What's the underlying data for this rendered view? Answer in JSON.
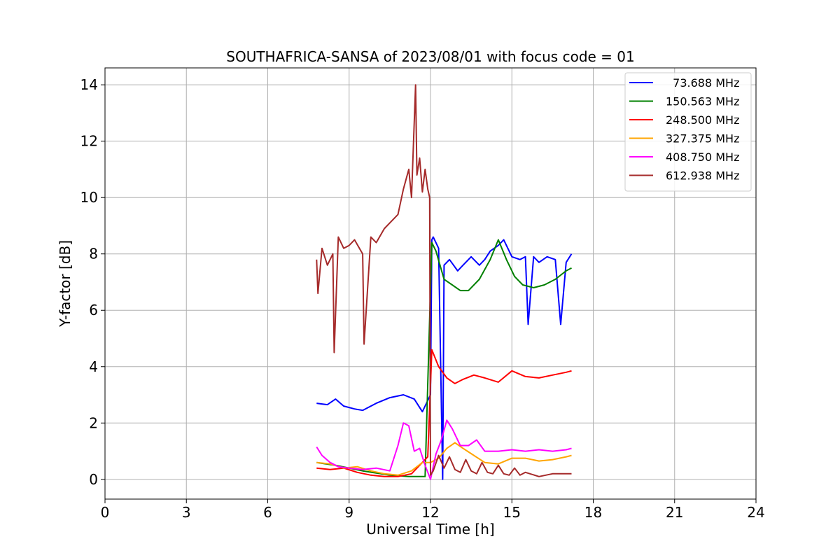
{
  "chart_data": {
    "type": "line",
    "title": "SOUTHAFRICA-SANSA of 2023/08/01 with focus code = 01",
    "xlabel": "Universal Time [h]",
    "ylabel": "Y-factor [dB]",
    "xlim": [
      0,
      24
    ],
    "ylim": [
      -0.7,
      14.6
    ],
    "xticks": [
      0,
      3,
      6,
      9,
      12,
      15,
      18,
      21,
      24
    ],
    "yticks": [
      0,
      2,
      4,
      6,
      8,
      10,
      12,
      14
    ],
    "grid": true,
    "legend_position": "top-right",
    "series": [
      {
        "name": "  73.688 MHz",
        "color": "#0000ff",
        "x": [
          7.8,
          8.2,
          8.5,
          8.8,
          9.2,
          9.5,
          10.0,
          10.5,
          11.0,
          11.4,
          11.7,
          12.0,
          12.05,
          12.1,
          12.3,
          12.45,
          12.5,
          12.7,
          13.0,
          13.2,
          13.5,
          13.8,
          14.0,
          14.2,
          14.5,
          14.7,
          15.0,
          15.3,
          15.5,
          15.6,
          15.8,
          16.0,
          16.3,
          16.6,
          16.8,
          17.0,
          17.2
        ],
        "y": [
          2.7,
          2.65,
          2.85,
          2.6,
          2.5,
          2.45,
          2.7,
          2.9,
          3.0,
          2.85,
          2.4,
          3.0,
          8.5,
          8.6,
          8.2,
          0.0,
          7.6,
          7.8,
          7.4,
          7.6,
          7.9,
          7.6,
          7.8,
          8.1,
          8.3,
          8.5,
          7.9,
          7.8,
          7.9,
          5.5,
          7.9,
          7.7,
          7.9,
          7.8,
          5.5,
          7.7,
          8.0
        ]
      },
      {
        "name": "150.563 MHz",
        "color": "#008000",
        "x": [
          7.8,
          8.5,
          9.5,
          10.5,
          11.2,
          11.8,
          12.05,
          12.2,
          12.5,
          12.8,
          13.1,
          13.4,
          13.8,
          14.2,
          14.5,
          14.8,
          15.1,
          15.4,
          15.8,
          16.2,
          16.6,
          17.0,
          17.2
        ],
        "y": [
          0.6,
          0.5,
          0.3,
          0.15,
          0.1,
          0.1,
          8.4,
          8.1,
          7.1,
          6.9,
          6.7,
          6.7,
          7.1,
          7.8,
          8.5,
          7.8,
          7.2,
          6.9,
          6.8,
          6.9,
          7.1,
          7.4,
          7.5
        ]
      },
      {
        "name": "248.500 MHz",
        "color": "#ff0000",
        "x": [
          7.8,
          8.3,
          8.8,
          9.3,
          9.8,
          10.3,
          10.8,
          11.3,
          11.6,
          11.9,
          12.05,
          12.3,
          12.6,
          12.9,
          13.2,
          13.6,
          14.0,
          14.5,
          15.0,
          15.5,
          16.0,
          16.5,
          17.0,
          17.2
        ],
        "y": [
          0.4,
          0.35,
          0.4,
          0.25,
          0.15,
          0.1,
          0.1,
          0.2,
          0.5,
          0.8,
          4.6,
          4.0,
          3.6,
          3.4,
          3.55,
          3.7,
          3.6,
          3.45,
          3.85,
          3.65,
          3.6,
          3.7,
          3.8,
          3.85
        ]
      },
      {
        "name": "327.375 MHz",
        "color": "#ffa500",
        "x": [
          7.8,
          8.3,
          8.8,
          9.3,
          9.8,
          10.3,
          10.8,
          11.3,
          11.7,
          12.0,
          12.3,
          12.6,
          12.9,
          13.2,
          13.6,
          14.0,
          14.5,
          15.0,
          15.5,
          16.0,
          16.5,
          17.0,
          17.2
        ],
        "y": [
          0.6,
          0.55,
          0.4,
          0.45,
          0.3,
          0.2,
          0.15,
          0.3,
          0.6,
          0.6,
          0.75,
          1.1,
          1.3,
          1.1,
          0.85,
          0.6,
          0.55,
          0.75,
          0.75,
          0.65,
          0.7,
          0.8,
          0.85
        ]
      },
      {
        "name": "408.750 MHz",
        "color": "#ff00ff",
        "x": [
          7.8,
          8.0,
          8.3,
          8.6,
          9.0,
          9.5,
          10.0,
          10.5,
          10.8,
          11.0,
          11.2,
          11.4,
          11.6,
          11.8,
          12.0,
          12.2,
          12.4,
          12.6,
          12.8,
          13.1,
          13.4,
          13.7,
          14.0,
          14.5,
          15.0,
          15.5,
          16.0,
          16.5,
          17.0,
          17.2
        ],
        "y": [
          1.15,
          0.85,
          0.6,
          0.45,
          0.4,
          0.35,
          0.4,
          0.3,
          1.2,
          2.0,
          1.9,
          1.0,
          1.1,
          0.5,
          0.0,
          0.9,
          1.4,
          2.1,
          1.8,
          1.2,
          1.2,
          1.4,
          1.0,
          1.0,
          1.05,
          1.0,
          1.05,
          1.0,
          1.05,
          1.1
        ]
      },
      {
        "name": "612.938 MHz",
        "color": "#a52a2a",
        "x": [
          7.8,
          7.85,
          8.0,
          8.2,
          8.4,
          8.45,
          8.6,
          8.8,
          9.0,
          9.2,
          9.5,
          9.55,
          9.8,
          10.0,
          10.3,
          10.5,
          10.8,
          11.0,
          11.2,
          11.3,
          11.45,
          11.5,
          11.6,
          11.7,
          11.8,
          11.9,
          11.97,
          12.0,
          12.1,
          12.3,
          12.5,
          12.7,
          12.9,
          13.1,
          13.3,
          13.5,
          13.7,
          13.9,
          14.1,
          14.3,
          14.5,
          14.7,
          14.9,
          15.1,
          15.3,
          15.5,
          16.0,
          16.5,
          17.0,
          17.2
        ],
        "y": [
          7.8,
          6.6,
          8.2,
          7.6,
          8.0,
          4.5,
          8.6,
          8.2,
          8.3,
          8.5,
          8.0,
          4.8,
          8.6,
          8.4,
          8.9,
          9.1,
          9.4,
          10.3,
          11.0,
          10.0,
          14.0,
          10.8,
          11.4,
          10.2,
          11.0,
          10.3,
          10.0,
          0.15,
          0.3,
          0.85,
          0.4,
          0.8,
          0.35,
          0.25,
          0.7,
          0.3,
          0.2,
          0.6,
          0.25,
          0.2,
          0.5,
          0.2,
          0.15,
          0.4,
          0.15,
          0.25,
          0.1,
          0.2,
          0.2,
          0.2
        ]
      }
    ]
  }
}
